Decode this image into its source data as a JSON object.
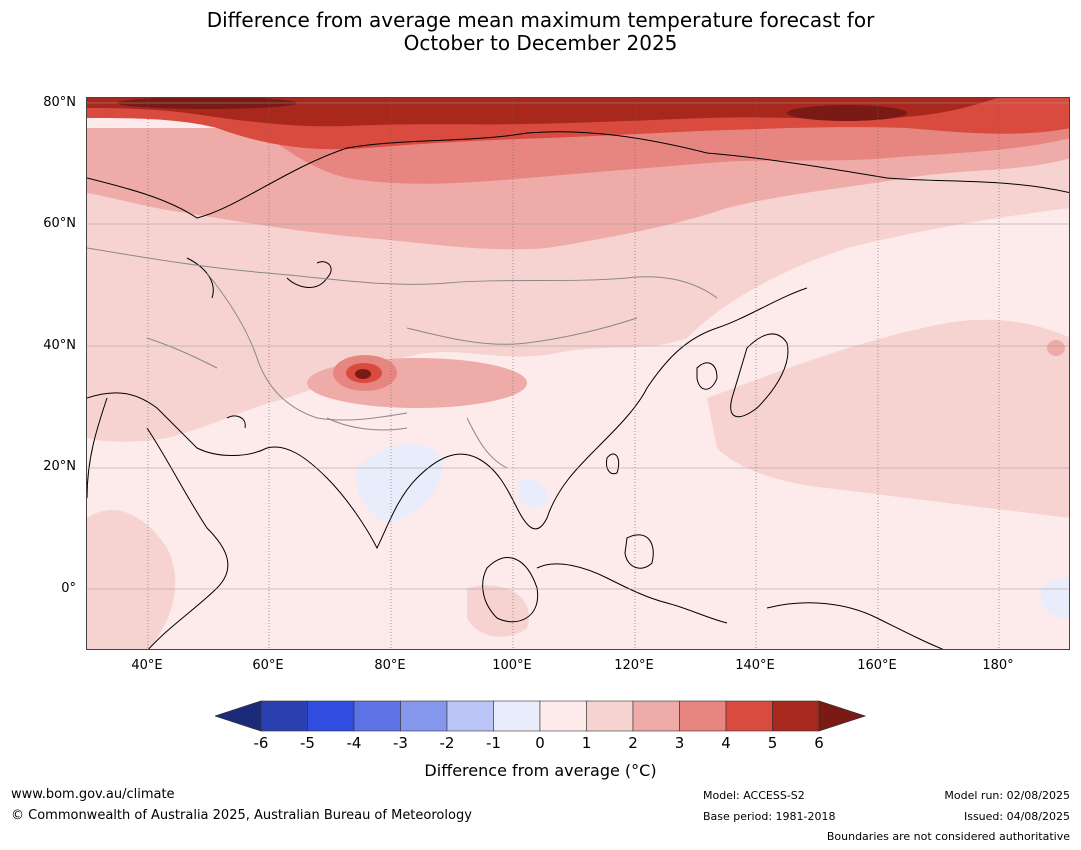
{
  "title_line1": "Difference from average mean maximum temperature forecast for",
  "title_line2": "October to December 2025",
  "lat_labels": [
    "80°N",
    "60°N",
    "40°N",
    "20°N",
    "0°"
  ],
  "lon_labels": [
    "40°E",
    "60°E",
    "80°E",
    "100°E",
    "120°E",
    "140°E",
    "160°E",
    "180°"
  ],
  "colorbar": {
    "ticks": [
      "-6",
      "-5",
      "-4",
      "-3",
      "-2",
      "-1",
      "0",
      "1",
      "2",
      "3",
      "4",
      "5",
      "6"
    ],
    "colors": [
      "#1c2a7a",
      "#2a3fb0",
      "#2f4ee0",
      "#5c72e6",
      "#8597ec",
      "#bcc6f6",
      "#e8ecfb",
      "#fdeaea",
      "#f6d3d1",
      "#eeaba7",
      "#e78681",
      "#d94a3f",
      "#a8281e",
      "#7a1a14"
    ],
    "label": "Difference from average (°C)"
  },
  "footer": {
    "website": "www.bom.gov.au/climate",
    "copyright": "© Commonwealth of Australia 2025, Australian Bureau of Meteorology",
    "model": "Model: ACCESS-S2",
    "base_period": "Base period: 1981-2018",
    "model_run": "Model run: 02/08/2025",
    "issued": "Issued: 04/08/2025",
    "disclaimer": "Boundaries are not considered authoritative"
  }
}
